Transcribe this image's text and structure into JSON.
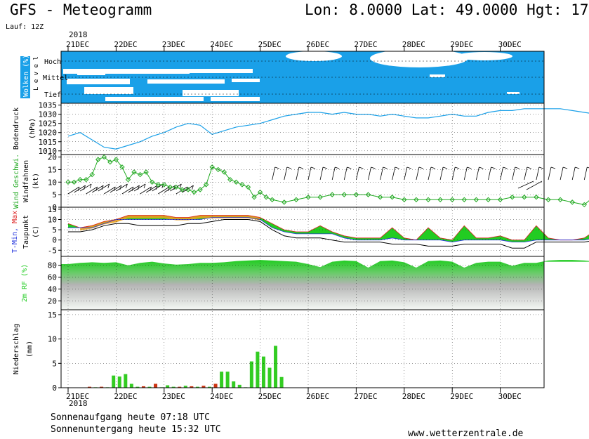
{
  "header": {
    "title": "GFS - Meteogramm",
    "location": "Lon: 8.0000 Lat: 49.0000 Hgt: 17",
    "run": "Lauf: 12Z"
  },
  "dates": {
    "year_top": "2018",
    "year_bottom": "2018",
    "labels": [
      "21DEC",
      "22DEC",
      "23DEC",
      "24DEC",
      "25DEC",
      "26DEC",
      "27DEC",
      "28DEC",
      "29DEC",
      "30DEC"
    ]
  },
  "colors": {
    "cloud": "#1aa0e8",
    "pressure": "#1aa0e8",
    "wind": "#22aa22",
    "tmin": "#2233dd",
    "tmax": "#dd2222",
    "temp_fill_green": "#22cc22",
    "temp_fill_orange": "#eaa020",
    "rh_fill": "#22cc22",
    "precip_green": "#33cc22",
    "precip_red": "#cc3311"
  },
  "panels": {
    "clouds": {
      "ylabel": "Wolken (%)",
      "levels": [
        "Hoch",
        "Mittel",
        "Tief"
      ],
      "level_word": "Level"
    },
    "pressure": {
      "ylabel": "Bodendruck",
      "unit": "(hPa)",
      "ticks": [
        "1035",
        "1030",
        "1025",
        "1020",
        "1015",
        "1010"
      ]
    },
    "wind": {
      "ylabel": "Wind Geschwi.",
      "ylabel2": "Windfahnen",
      "unit": "(kt)",
      "ticks": [
        "20",
        "15",
        "10",
        "5",
        "0"
      ]
    },
    "temp": {
      "ylabel_tmin": "T-Min,",
      "ylabel_tmax": "Max",
      "ylabel2": "Taupunkt",
      "unit": "(C)",
      "ticks": [
        "15",
        "10",
        "5",
        "0",
        "-5"
      ]
    },
    "rh": {
      "ylabel": "2m RF (%)",
      "ticks": [
        "80",
        "60",
        "40",
        "20"
      ]
    },
    "precip": {
      "ylabel": "Niederschlag",
      "unit": "(mm)",
      "ticks": [
        "15",
        "10",
        "5",
        "0"
      ]
    }
  },
  "chart_data": [
    {
      "type": "line",
      "name": "pressure",
      "xlabel": "",
      "ylabel": "Bodendruck (hPa)",
      "ylim": [
        1008,
        1036
      ],
      "x": [
        0,
        6,
        12,
        18,
        24,
        30,
        36,
        42,
        48,
        54,
        60,
        66,
        72,
        78,
        84,
        90,
        96,
        102,
        108,
        114,
        120,
        126,
        132,
        138,
        144,
        150,
        156,
        162,
        168,
        174,
        180,
        186,
        192,
        198,
        204,
        210,
        216,
        222,
        228,
        234,
        240,
        246,
        252,
        258,
        264
      ],
      "values": [
        1018,
        1020,
        1016,
        1012,
        1011,
        1013,
        1015,
        1018,
        1020,
        1023,
        1025,
        1024,
        1019,
        1021,
        1023,
        1024,
        1025,
        1027,
        1029,
        1030,
        1031,
        1031,
        1030,
        1031,
        1030,
        1030,
        1029,
        1030,
        1029,
        1028,
        1028,
        1029,
        1030,
        1029,
        1029,
        1031,
        1032,
        1032,
        1033,
        1033,
        1033,
        1033,
        1032,
        1031,
        1030
      ]
    },
    {
      "type": "line",
      "name": "wind",
      "xlabel": "",
      "ylabel": "Wind Geschwi. (kt)",
      "ylim": [
        0,
        21
      ],
      "x": [
        0,
        3,
        6,
        9,
        12,
        15,
        18,
        21,
        24,
        27,
        30,
        33,
        36,
        39,
        42,
        45,
        48,
        51,
        54,
        57,
        60,
        63,
        66,
        69,
        72,
        75,
        78,
        81,
        84,
        87,
        90,
        93,
        96,
        99,
        102,
        108,
        114,
        120,
        126,
        132,
        138,
        144,
        150,
        156,
        162,
        168,
        174,
        180,
        186,
        192,
        198,
        204,
        210,
        216,
        222,
        228,
        234,
        240,
        246,
        252,
        258,
        264
      ],
      "values": [
        10,
        10,
        11,
        11,
        13,
        19,
        20,
        18,
        19,
        16,
        11,
        14,
        13,
        14,
        10,
        9,
        9,
        8,
        8,
        7,
        7,
        6,
        7,
        9,
        16,
        15,
        14,
        11,
        10,
        9,
        8,
        4,
        6,
        4,
        3,
        2,
        3,
        4,
        4,
        5,
        5,
        5,
        5,
        4,
        4,
        3,
        3,
        3,
        3,
        3,
        3,
        3,
        3,
        3,
        4,
        4,
        4,
        3,
        3,
        2,
        1,
        5
      ]
    },
    {
      "type": "area",
      "name": "temperature",
      "xlabel": "",
      "ylabel": "T-Min, Max / Taupunkt (C)",
      "ylim": [
        -8,
        16
      ],
      "x": [
        0,
        6,
        12,
        18,
        24,
        30,
        36,
        42,
        48,
        54,
        60,
        66,
        72,
        78,
        84,
        90,
        96,
        102,
        108,
        114,
        120,
        126,
        132,
        138,
        144,
        150,
        156,
        162,
        168,
        174,
        180,
        186,
        192,
        198,
        204,
        210,
        216,
        222,
        228,
        234,
        240,
        246,
        252,
        258,
        264
      ],
      "series": [
        {
          "name": "T-Max",
          "values": [
            8,
            6,
            7,
            9,
            10,
            12,
            12,
            12,
            12,
            11,
            11,
            12,
            12,
            12,
            12,
            12,
            11,
            8,
            5,
            4,
            4,
            7,
            4,
            2,
            1,
            1,
            1,
            6,
            1,
            0,
            6,
            1,
            0,
            7,
            1,
            1,
            2,
            0,
            0,
            7,
            1,
            0,
            0,
            1,
            5
          ]
        },
        {
          "name": "T-Min",
          "values": [
            6,
            6,
            6,
            8,
            10,
            10,
            10,
            10,
            10,
            10,
            10,
            10,
            11,
            11,
            11,
            11,
            10,
            6,
            4,
            3,
            3,
            3,
            3,
            1,
            0,
            0,
            0,
            1,
            0,
            0,
            0,
            0,
            -1,
            0,
            0,
            0,
            0,
            -1,
            -1,
            0,
            0,
            0,
            0,
            0,
            1
          ]
        },
        {
          "name": "Taupunkt",
          "values": [
            4,
            4,
            5,
            7,
            8,
            8,
            7,
            7,
            7,
            7,
            8,
            8,
            9,
            10,
            10,
            10,
            9,
            5,
            2,
            1,
            1,
            1,
            0,
            -1,
            -1,
            -1,
            -1,
            -2,
            -2,
            -2,
            -3,
            -3,
            -3,
            -2,
            -2,
            -2,
            -2,
            -4,
            -4,
            -1,
            -1,
            -1,
            -1,
            -1,
            0
          ]
        }
      ]
    },
    {
      "type": "area",
      "name": "rh",
      "xlabel": "",
      "ylabel": "2m RF (%)",
      "ylim": [
        5,
        95
      ],
      "x": [
        0,
        6,
        12,
        18,
        24,
        30,
        36,
        42,
        48,
        54,
        60,
        66,
        72,
        78,
        84,
        90,
        96,
        102,
        108,
        114,
        120,
        126,
        132,
        138,
        144,
        150,
        156,
        162,
        168,
        174,
        180,
        186,
        192,
        198,
        204,
        210,
        216,
        222,
        228,
        234,
        240,
        246,
        252,
        258,
        264
      ],
      "values": [
        82,
        84,
        85,
        84,
        85,
        80,
        84,
        86,
        83,
        81,
        82,
        84,
        84,
        85,
        87,
        88,
        89,
        88,
        87,
        86,
        82,
        77,
        86,
        88,
        87,
        76,
        87,
        88,
        85,
        76,
        87,
        88,
        86,
        76,
        84,
        86,
        86,
        79,
        84,
        84,
        88,
        89,
        89,
        88,
        86
      ]
    },
    {
      "type": "bar",
      "name": "precipitation",
      "xlabel": "",
      "ylabel": "Niederschlag (mm)",
      "ylim": [
        0,
        16
      ],
      "x": [
        0,
        3,
        6,
        9,
        12,
        15,
        18,
        21,
        24,
        27,
        30,
        33,
        36,
        39,
        42,
        45,
        48,
        51,
        54,
        57,
        60,
        63,
        66,
        69,
        72,
        75,
        78,
        81,
        84,
        87,
        90,
        93,
        96,
        99,
        102,
        108,
        114,
        120
      ],
      "values": [
        0.2,
        0.1,
        0.2,
        0.1,
        2.5,
        2.3,
        2.8,
        0.8,
        0.2,
        0.3,
        0.2,
        0.8,
        0.1,
        0.5,
        0.2,
        0.2,
        0.4,
        0.3,
        0.2,
        0.4,
        0.2,
        0.8,
        3.3,
        3.3,
        1.3,
        0.6,
        0.1,
        5.4,
        7.4,
        6.4,
        4.1,
        8.6,
        2.2,
        0,
        0,
        0,
        0,
        0
      ],
      "red_x": [
        0,
        6,
        27,
        33,
        45,
        51,
        57,
        63
      ]
    }
  ]
}
